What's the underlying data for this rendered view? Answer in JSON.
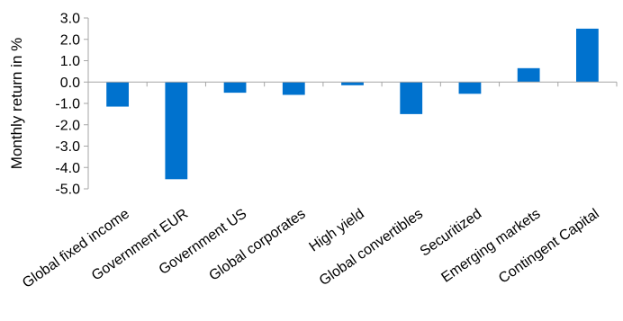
{
  "chart_data": {
    "type": "bar",
    "title": "",
    "xlabel": "",
    "ylabel": "Monthly return in %",
    "ylim": [
      -5.0,
      3.0
    ],
    "yticks": [
      "3.0",
      "2.0",
      "1.0",
      "0.0",
      "-1.0",
      "-2.0",
      "-3.0",
      "-4.0",
      "-5.0"
    ],
    "grid": false,
    "legend": "none",
    "categories": [
      "Global fixed income",
      "Government EUR",
      "Government US",
      "Global corporates",
      "High yield",
      "Global convertibles",
      "Securitized",
      "Emerging markets",
      "Contingent Capital"
    ],
    "values": [
      -1.15,
      -4.55,
      -0.5,
      -0.6,
      -0.15,
      -1.5,
      -0.55,
      0.65,
      2.5
    ],
    "bar_color": "#0072CE",
    "axis_color": "#A6A6A6"
  }
}
